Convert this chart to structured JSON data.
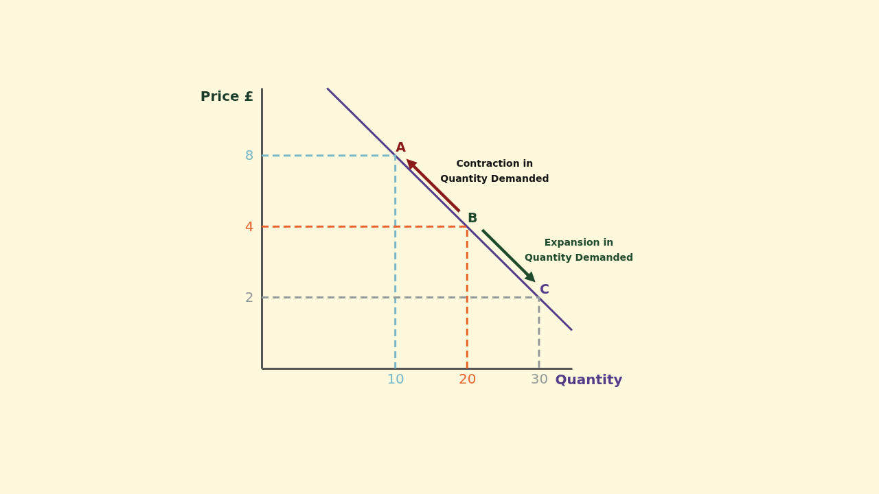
{
  "chart_data": {
    "type": "line",
    "xlabel": "Quantity",
    "ylabel": "Price £",
    "log": "y",
    "grid": false,
    "xlim": [
      -8.6,
      34.6
    ],
    "ylim": [
      1,
      15.5
    ],
    "xticks": [
      10,
      20,
      30
    ],
    "yticks": [
      8,
      4,
      2
    ],
    "series": [
      {
        "color": "#553c8b",
        "line_style": "solid",
        "x": [
          0.5,
          34.6
        ],
        "values": [
          15.45,
          1.45
        ]
      },
      {
        "color": "#7ab8c8",
        "line_style": "dashed",
        "x": [
          -8.6,
          10,
          10
        ],
        "values": [
          8,
          8,
          1
        ]
      },
      {
        "color": "#e8622c",
        "line_style": "dashed",
        "x": [
          -8.6,
          20,
          20
        ],
        "values": [
          4,
          4,
          1
        ]
      },
      {
        "color": "#949a9a",
        "line_style": "dashed",
        "x": [
          -8.6,
          30,
          30
        ],
        "values": [
          2,
          2,
          1
        ]
      }
    ],
    "annotations": [
      {
        "text": "A",
        "x": 10,
        "y": 8
      },
      {
        "text": "B",
        "x": 20,
        "y": 4
      },
      {
        "text": "C",
        "x": 30,
        "y": 2
      },
      "Contraction in Quantity Demanded",
      "Expansion in Quantity Demanded"
    ]
  }
}
